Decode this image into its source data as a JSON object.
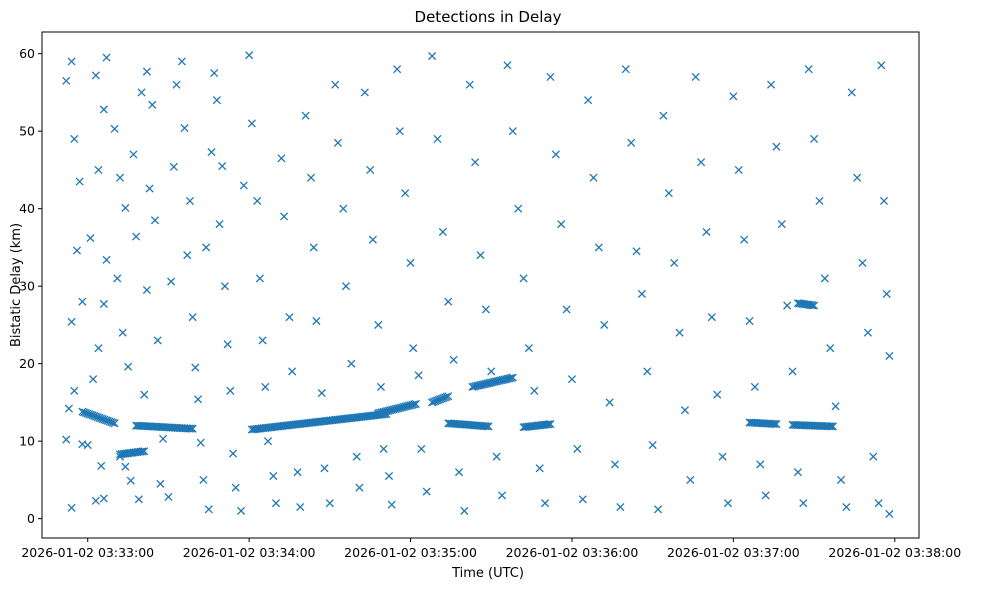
{
  "chart_data": {
    "type": "scatter",
    "title": "Detections in Delay",
    "xlabel": "Time (UTC)",
    "ylabel": "Bistatic Delay (km)",
    "x_ticks": [
      "2026-01-02 03:33:00",
      "2026-01-02 03:34:00",
      "2026-01-02 03:35:00",
      "2026-01-02 03:36:00",
      "2026-01-02 03:37:00",
      "2026-01-02 03:38:00"
    ],
    "y_ticks": [
      0,
      10,
      20,
      30,
      40,
      50,
      60
    ],
    "xlim": [
      "2026-01-02 03:32:43",
      "2026-01-02 03:38:09"
    ],
    "ylim": [
      -2.5,
      62.8
    ],
    "marker": "x",
    "marker_color": "#1f77b4",
    "grid": false,
    "series": [
      {
        "points": [
          [
            "03:32:52",
            56.5
          ],
          [
            "03:32:54",
            59.0
          ],
          [
            "03:32:55",
            49.0
          ],
          [
            "03:32:57",
            43.5
          ],
          [
            "03:32:56",
            34.6
          ],
          [
            "03:32:58",
            28.0
          ],
          [
            "03:32:54",
            25.4
          ],
          [
            "03:32:55",
            16.5
          ],
          [
            "03:32:53",
            14.2
          ],
          [
            "03:32:52",
            10.2
          ],
          [
            "03:32:54",
            1.4
          ],
          [
            "03:32:58",
            9.6
          ],
          [
            "03:33:00",
            9.5
          ],
          [
            "03:33:03",
            2.3
          ],
          [
            "03:33:05",
            6.8
          ],
          [
            "03:33:06",
            2.6
          ],
          [
            "03:33:02",
            18.0
          ],
          [
            "03:33:04",
            22.0
          ],
          [
            "03:33:06",
            27.7
          ],
          [
            "03:33:01",
            36.2
          ],
          [
            "03:33:07",
            33.4
          ],
          [
            "03:33:04",
            45.0
          ],
          [
            "03:33:06",
            52.8
          ],
          [
            "03:33:03",
            57.2
          ],
          [
            "03:33:07",
            59.5
          ],
          [
            "03:33:10",
            50.3
          ],
          [
            "03:33:12",
            44.0
          ],
          [
            "03:33:14",
            40.1
          ],
          [
            "03:33:11",
            31.0
          ],
          [
            "03:33:13",
            24.0
          ],
          [
            "03:33:15",
            19.6
          ],
          [
            "03:33:12",
            8.0
          ],
          [
            "03:33:14",
            6.7
          ],
          [
            "03:33:16",
            4.9
          ],
          [
            "03:33:19",
            2.5
          ],
          [
            "03:33:18",
            36.4
          ],
          [
            "03:33:17",
            47.0
          ],
          [
            "03:33:20",
            55.0
          ],
          [
            "03:33:22",
            57.7
          ],
          [
            "03:33:24",
            53.4
          ],
          [
            "03:33:23",
            42.6
          ],
          [
            "03:33:25",
            38.5
          ],
          [
            "03:33:22",
            29.5
          ],
          [
            "03:33:26",
            23.0
          ],
          [
            "03:33:21",
            16.0
          ],
          [
            "03:33:28",
            10.3
          ],
          [
            "03:33:27",
            4.5
          ],
          [
            "03:33:30",
            2.8
          ],
          [
            "03:33:31",
            30.6
          ],
          [
            "03:33:32",
            45.4
          ],
          [
            "03:33:33",
            56.0
          ],
          [
            "03:33:35",
            59.0
          ],
          [
            "03:33:36",
            50.4
          ],
          [
            "03:33:38",
            41.0
          ],
          [
            "03:33:37",
            34.0
          ],
          [
            "03:33:39",
            26.0
          ],
          [
            "03:33:40",
            19.5
          ],
          [
            "03:33:41",
            15.4
          ],
          [
            "03:33:42",
            9.8
          ],
          [
            "03:33:43",
            5.0
          ],
          [
            "03:33:45",
            1.2
          ],
          [
            "03:33:44",
            35.0
          ],
          [
            "03:33:46",
            47.3
          ],
          [
            "03:33:47",
            57.5
          ],
          [
            "03:33:48",
            54.0
          ],
          [
            "03:33:50",
            45.5
          ],
          [
            "03:33:49",
            38.0
          ],
          [
            "03:33:51",
            30.0
          ],
          [
            "03:33:52",
            22.5
          ],
          [
            "03:33:53",
            16.5
          ],
          [
            "03:33:54",
            8.4
          ],
          [
            "03:33:55",
            4.0
          ],
          [
            "03:33:57",
            1.0
          ],
          [
            "03:33:58",
            43.0
          ],
          [
            "03:34:00",
            59.8
          ],
          [
            "03:34:01",
            51.0
          ],
          [
            "03:34:03",
            41.0
          ],
          [
            "03:34:04",
            31.0
          ],
          [
            "03:34:05",
            23.0
          ],
          [
            "03:34:06",
            17.0
          ],
          [
            "03:34:07",
            10.0
          ],
          [
            "03:34:09",
            5.5
          ],
          [
            "03:34:10",
            2.0
          ],
          [
            "03:34:12",
            46.5
          ],
          [
            "03:34:13",
            39.0
          ],
          [
            "03:34:15",
            26.0
          ],
          [
            "03:34:16",
            19.0
          ],
          [
            "03:34:18",
            6.0
          ],
          [
            "03:34:19",
            1.5
          ],
          [
            "03:34:21",
            52.0
          ],
          [
            "03:34:23",
            44.0
          ],
          [
            "03:34:24",
            35.0
          ],
          [
            "03:34:25",
            25.5
          ],
          [
            "03:34:27",
            16.2
          ],
          [
            "03:34:28",
            6.5
          ],
          [
            "03:34:30",
            2.0
          ],
          [
            "03:34:32",
            56.0
          ],
          [
            "03:34:33",
            48.5
          ],
          [
            "03:34:35",
            40.0
          ],
          [
            "03:34:36",
            30.0
          ],
          [
            "03:34:38",
            20.0
          ],
          [
            "03:34:40",
            8.0
          ],
          [
            "03:34:41",
            4.0
          ],
          [
            "03:34:43",
            55.0
          ],
          [
            "03:34:45",
            45.0
          ],
          [
            "03:34:46",
            36.0
          ],
          [
            "03:34:48",
            25.0
          ],
          [
            "03:34:49",
            17.0
          ],
          [
            "03:34:50",
            9.0
          ],
          [
            "03:34:52",
            5.5
          ],
          [
            "03:34:53",
            1.8
          ],
          [
            "03:34:55",
            58.0
          ],
          [
            "03:34:56",
            50.0
          ],
          [
            "03:34:58",
            42.0
          ],
          [
            "03:35:00",
            33.0
          ],
          [
            "03:35:01",
            22.0
          ],
          [
            "03:35:03",
            18.5
          ],
          [
            "03:35:04",
            9.0
          ],
          [
            "03:35:06",
            3.5
          ],
          [
            "03:35:08",
            59.7
          ],
          [
            "03:35:10",
            49.0
          ],
          [
            "03:35:12",
            37.0
          ],
          [
            "03:35:14",
            28.0
          ],
          [
            "03:35:16",
            20.5
          ],
          [
            "03:35:18",
            6.0
          ],
          [
            "03:35:20",
            1.0
          ],
          [
            "03:35:22",
            56.0
          ],
          [
            "03:35:24",
            46.0
          ],
          [
            "03:35:26",
            34.0
          ],
          [
            "03:35:28",
            27.0
          ],
          [
            "03:35:30",
            19.0
          ],
          [
            "03:35:32",
            8.0
          ],
          [
            "03:35:34",
            3.0
          ],
          [
            "03:35:36",
            58.5
          ],
          [
            "03:35:38",
            50.0
          ],
          [
            "03:35:40",
            40.0
          ],
          [
            "03:35:42",
            31.0
          ],
          [
            "03:35:44",
            22.0
          ],
          [
            "03:35:46",
            16.5
          ],
          [
            "03:35:48",
            6.5
          ],
          [
            "03:35:50",
            2.0
          ],
          [
            "03:35:52",
            57.0
          ],
          [
            "03:35:54",
            47.0
          ],
          [
            "03:35:56",
            38.0
          ],
          [
            "03:35:58",
            27.0
          ],
          [
            "03:36:00",
            18.0
          ],
          [
            "03:36:02",
            9.0
          ],
          [
            "03:36:04",
            2.5
          ],
          [
            "03:36:06",
            54.0
          ],
          [
            "03:36:08",
            44.0
          ],
          [
            "03:36:10",
            35.0
          ],
          [
            "03:36:12",
            25.0
          ],
          [
            "03:36:14",
            15.0
          ],
          [
            "03:36:16",
            7.0
          ],
          [
            "03:36:18",
            1.5
          ],
          [
            "03:36:20",
            58.0
          ],
          [
            "03:36:22",
            48.5
          ],
          [
            "03:36:24",
            34.5
          ],
          [
            "03:36:26",
            29.0
          ],
          [
            "03:36:28",
            19.0
          ],
          [
            "03:36:30",
            9.5
          ],
          [
            "03:36:32",
            1.2
          ],
          [
            "03:36:34",
            52.0
          ],
          [
            "03:36:36",
            42.0
          ],
          [
            "03:36:38",
            33.0
          ],
          [
            "03:36:40",
            24.0
          ],
          [
            "03:36:42",
            14.0
          ],
          [
            "03:36:44",
            5.0
          ],
          [
            "03:36:46",
            57.0
          ],
          [
            "03:36:48",
            46.0
          ],
          [
            "03:36:50",
            37.0
          ],
          [
            "03:36:52",
            26.0
          ],
          [
            "03:36:54",
            16.0
          ],
          [
            "03:36:56",
            8.0
          ],
          [
            "03:36:58",
            2.0
          ],
          [
            "03:37:00",
            54.5
          ],
          [
            "03:37:02",
            45.0
          ],
          [
            "03:37:04",
            36.0
          ],
          [
            "03:37:06",
            25.5
          ],
          [
            "03:37:08",
            17.0
          ],
          [
            "03:37:10",
            7.0
          ],
          [
            "03:37:12",
            3.0
          ],
          [
            "03:37:14",
            56.0
          ],
          [
            "03:37:16",
            48.0
          ],
          [
            "03:37:18",
            38.0
          ],
          [
            "03:37:20",
            27.5
          ],
          [
            "03:37:22",
            19.0
          ],
          [
            "03:37:24",
            6.0
          ],
          [
            "03:37:26",
            2.0
          ],
          [
            "03:37:28",
            58.0
          ],
          [
            "03:37:30",
            49.0
          ],
          [
            "03:37:32",
            41.0
          ],
          [
            "03:37:34",
            31.0
          ],
          [
            "03:37:36",
            22.0
          ],
          [
            "03:37:38",
            14.5
          ],
          [
            "03:37:40",
            5.0
          ],
          [
            "03:37:42",
            1.5
          ],
          [
            "03:37:44",
            55.0
          ],
          [
            "03:37:46",
            44.0
          ],
          [
            "03:37:48",
            33.0
          ],
          [
            "03:37:50",
            24.0
          ],
          [
            "03:37:52",
            8.0
          ],
          [
            "03:37:54",
            2.0
          ],
          [
            "03:37:55",
            58.5
          ],
          [
            "03:37:56",
            41.0
          ],
          [
            "03:37:57",
            29.0
          ],
          [
            "03:37:58",
            21.0
          ],
          [
            "03:37:58",
            0.6
          ]
        ],
        "tracks": [
          {
            "t0": "03:32:58",
            "y0": 13.8,
            "t1": "03:33:10",
            "y1": 12.3
          },
          {
            "t0": "03:33:12",
            "y0": 8.3,
            "t1": "03:33:21",
            "y1": 8.7
          },
          {
            "t0": "03:33:18",
            "y0": 12.0,
            "t1": "03:33:39",
            "y1": 11.6
          },
          {
            "t0": "03:34:01",
            "y0": 11.5,
            "t1": "03:34:51",
            "y1": 13.5
          },
          {
            "t0": "03:34:48",
            "y0": 13.6,
            "t1": "03:35:02",
            "y1": 14.8
          },
          {
            "t0": "03:35:08",
            "y0": 15.0,
            "t1": "03:35:14",
            "y1": 15.8
          },
          {
            "t0": "03:35:14",
            "y0": 12.3,
            "t1": "03:35:29",
            "y1": 11.9
          },
          {
            "t0": "03:35:23",
            "y0": 17.0,
            "t1": "03:35:38",
            "y1": 18.2
          },
          {
            "t0": "03:35:42",
            "y0": 11.8,
            "t1": "03:35:52",
            "y1": 12.2
          },
          {
            "t0": "03:37:06",
            "y0": 12.4,
            "t1": "03:37:16",
            "y1": 12.2
          },
          {
            "t0": "03:37:22",
            "y0": 12.1,
            "t1": "03:37:37",
            "y1": 11.9
          },
          {
            "t0": "03:37:24",
            "y0": 27.8,
            "t1": "03:37:30",
            "y1": 27.5
          }
        ]
      }
    ]
  }
}
